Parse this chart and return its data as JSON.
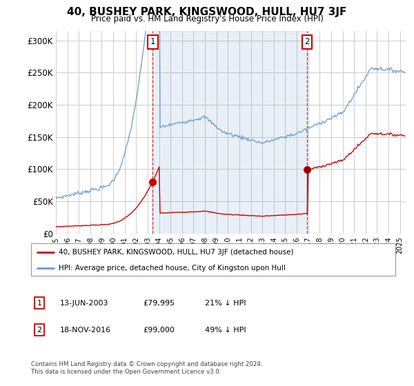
{
  "title": "40, BUSHEY PARK, KINGSWOOD, HULL, HU7 3JF",
  "subtitle": "Price paid vs. HM Land Registry's House Price Index (HPI)",
  "ylabel_ticks": [
    "£0",
    "£50K",
    "£100K",
    "£150K",
    "£200K",
    "£250K",
    "£300K"
  ],
  "ytick_values": [
    0,
    50000,
    100000,
    150000,
    200000,
    250000,
    300000
  ],
  "ylim": [
    0,
    315000
  ],
  "xlim_start": 1995.0,
  "xlim_end": 2025.5,
  "purchase1": {
    "date_label": "13-JUN-2003",
    "price": 79995,
    "year": 2003.45,
    "label": "1",
    "note": "21% ↓ HPI"
  },
  "purchase2": {
    "date_label": "18-NOV-2016",
    "price": 99000,
    "year": 2016.88,
    "label": "2",
    "note": "49% ↓ HPI"
  },
  "legend_line1": "40, BUSHEY PARK, KINGSWOOD, HULL, HU7 3JF (detached house)",
  "legend_line2": "HPI: Average price, detached house, City of Kingston upon Hull",
  "footer1": "Contains HM Land Registry data © Crown copyright and database right 2024.",
  "footer2": "This data is licensed under the Open Government Licence v3.0.",
  "line_color_red": "#cc0000",
  "line_color_blue": "#6699cc",
  "fill_color_blue": "#ddeeff",
  "background_color": "#ffffff",
  "grid_color": "#cccccc"
}
